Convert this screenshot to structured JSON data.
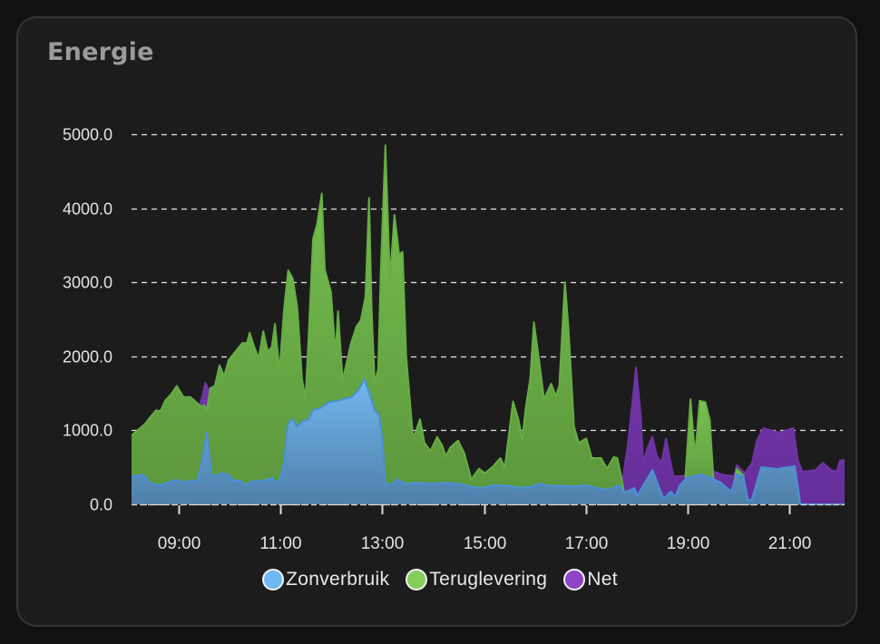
{
  "card": {
    "title": "Energie"
  },
  "colors": {
    "background": "#111111",
    "card": "#1c1c1c",
    "zonverbruik": "#6fb8f5",
    "teruglevering": "#85cd5a",
    "net": "#8e44c7"
  },
  "legend": [
    {
      "label": "Zonverbruik",
      "color": "#6fb8f5"
    },
    {
      "label": "Teruglevering",
      "color": "#85cd5a"
    },
    {
      "label": "Net",
      "color": "#8e44c7"
    }
  ],
  "chart_data": {
    "type": "area",
    "stacked": true,
    "title": "Energie",
    "xlabel": "",
    "ylabel": "",
    "ylim": [
      0,
      5000
    ],
    "xlim_hours": [
      8.07,
      22.09
    ],
    "y_ticks": [
      "0.0",
      "1000.0",
      "2000.0",
      "3000.0",
      "4000.0",
      "5000.0"
    ],
    "x_ticks": [
      "09:00",
      "11:00",
      "13:00",
      "15:00",
      "17:00",
      "19:00",
      "21:00"
    ],
    "grid": true,
    "legend_position": "bottom",
    "series": [
      {
        "name": "Net",
        "color": "#8e44c7",
        "note": "stack_top = cumulative top of Zonverbruik+Teruglevering+Net",
        "segments": [
          [
            [
              8.3,
              1000
            ],
            [
              8.4,
              1150
            ],
            [
              8.5,
              1230
            ],
            [
              8.6,
              1200
            ]
          ],
          [
            [
              9.4,
              1330
            ],
            [
              9.46,
              1450
            ],
            [
              9.52,
              1640
            ],
            [
              9.58,
              1560
            ],
            [
              9.66,
              1450
            ]
          ],
          [
            [
              17.72,
              300
            ],
            [
              17.83,
              810
            ],
            [
              17.99,
              1850
            ],
            [
              18.08,
              1210
            ],
            [
              18.13,
              560
            ],
            [
              18.22,
              770
            ],
            [
              18.31,
              910
            ],
            [
              18.4,
              650
            ],
            [
              18.49,
              560
            ],
            [
              18.58,
              890
            ],
            [
              18.67,
              560
            ],
            [
              18.72,
              380
            ],
            [
              18.9,
              380
            ],
            [
              18.98,
              400
            ],
            [
              19.5,
              400
            ],
            [
              19.53,
              440
            ],
            [
              19.69,
              400
            ],
            [
              19.92,
              380
            ],
            [
              19.97,
              530
            ],
            [
              20.13,
              420
            ],
            [
              20.27,
              560
            ],
            [
              20.36,
              850
            ],
            [
              20.49,
              1030
            ],
            [
              20.69,
              990
            ],
            [
              20.81,
              970
            ],
            [
              21.08,
              1030
            ],
            [
              21.17,
              600
            ],
            [
              21.26,
              440
            ],
            [
              21.52,
              465
            ],
            [
              21.66,
              560
            ],
            [
              21.82,
              465
            ],
            [
              21.93,
              440
            ],
            [
              22.0,
              590
            ],
            [
              22.09,
              600
            ]
          ]
        ]
      },
      {
        "name": "Teruglevering",
        "color": "#85cd5a",
        "note": "stack_top = cumulative top of Zonverbruik+Teruglevering",
        "segments": [
          [
            [
              8.07,
              930
            ],
            [
              8.34,
              1090
            ],
            [
              8.55,
              1270
            ],
            [
              8.64,
              1260
            ],
            [
              8.73,
              1400
            ],
            [
              8.84,
              1480
            ],
            [
              8.96,
              1600
            ],
            [
              9.09,
              1450
            ],
            [
              9.23,
              1450
            ],
            [
              9.37,
              1360
            ],
            [
              9.44,
              1320
            ],
            [
              9.5,
              1340
            ],
            [
              9.55,
              1270
            ],
            [
              9.62,
              1570
            ],
            [
              9.71,
              1600
            ],
            [
              9.8,
              1880
            ],
            [
              9.89,
              1730
            ],
            [
              9.98,
              1950
            ],
            [
              10.12,
              2070
            ],
            [
              10.25,
              2180
            ],
            [
              10.34,
              2180
            ],
            [
              10.39,
              2320
            ],
            [
              10.48,
              2130
            ],
            [
              10.57,
              1970
            ],
            [
              10.66,
              2340
            ],
            [
              10.75,
              2060
            ],
            [
              10.83,
              2130
            ],
            [
              10.89,
              2440
            ],
            [
              10.98,
              1790
            ],
            [
              11.07,
              2650
            ],
            [
              11.15,
              3160
            ],
            [
              11.24,
              3050
            ],
            [
              11.33,
              2650
            ],
            [
              11.42,
              1700
            ],
            [
              11.49,
              1420
            ],
            [
              11.55,
              2240
            ],
            [
              11.64,
              3590
            ],
            [
              11.72,
              3790
            ],
            [
              11.81,
              4200
            ],
            [
              11.87,
              3170
            ],
            [
              11.99,
              2870
            ],
            [
              12.08,
              2030
            ],
            [
              12.13,
              2610
            ],
            [
              12.22,
              1670
            ],
            [
              12.38,
              2160
            ],
            [
              12.49,
              2400
            ],
            [
              12.58,
              2490
            ],
            [
              12.67,
              2810
            ],
            [
              12.74,
              4140
            ],
            [
              12.79,
              2650
            ],
            [
              12.85,
              1630
            ],
            [
              12.92,
              1830
            ],
            [
              12.97,
              3140
            ],
            [
              13.06,
              4850
            ],
            [
              13.15,
              3050
            ],
            [
              13.24,
              3910
            ],
            [
              13.33,
              3380
            ],
            [
              13.4,
              3410
            ],
            [
              13.47,
              2000
            ],
            [
              13.6,
              930
            ],
            [
              13.65,
              960
            ],
            [
              13.74,
              1150
            ],
            [
              13.83,
              830
            ],
            [
              13.95,
              720
            ],
            [
              14.08,
              910
            ],
            [
              14.18,
              790
            ],
            [
              14.25,
              650
            ],
            [
              14.34,
              770
            ],
            [
              14.49,
              860
            ],
            [
              14.61,
              690
            ],
            [
              14.75,
              340
            ],
            [
              14.9,
              480
            ],
            [
              15.02,
              420
            ],
            [
              15.16,
              500
            ],
            [
              15.32,
              625
            ],
            [
              15.41,
              500
            ],
            [
              15.57,
              1390
            ],
            [
              15.68,
              1140
            ],
            [
              15.75,
              870
            ],
            [
              15.82,
              1300
            ],
            [
              15.91,
              1700
            ],
            [
              15.98,
              2460
            ],
            [
              16.09,
              1910
            ],
            [
              16.18,
              1420
            ],
            [
              16.32,
              1630
            ],
            [
              16.41,
              1460
            ],
            [
              16.48,
              1600
            ],
            [
              16.59,
              3000
            ],
            [
              16.66,
              2380
            ],
            [
              16.77,
              1050
            ],
            [
              16.86,
              830
            ],
            [
              17.01,
              890
            ],
            [
              17.12,
              625
            ],
            [
              17.3,
              625
            ],
            [
              17.42,
              480
            ],
            [
              17.55,
              640
            ],
            [
              17.62,
              625
            ],
            [
              17.69,
              400
            ],
            [
              17.75,
              180
            ]
          ],
          [
            [
              18.96,
              355
            ],
            [
              19.06,
              1420
            ],
            [
              19.15,
              650
            ],
            [
              19.24,
              1400
            ],
            [
              19.35,
              1380
            ],
            [
              19.44,
              1140
            ],
            [
              19.51,
              343
            ]
          ],
          [
            [
              19.92,
              300
            ],
            [
              19.97,
              480
            ],
            [
              20.06,
              420
            ],
            [
              20.12,
              380
            ]
          ]
        ]
      },
      {
        "name": "Zonverbruik",
        "color": "#6fb8f5",
        "note": "stack_top = Zonverbruik value",
        "segments": [
          [
            [
              8.07,
              380
            ],
            [
              8.3,
              400
            ],
            [
              8.45,
              280
            ],
            [
              8.64,
              260
            ],
            [
              8.93,
              330
            ],
            [
              9.1,
              300
            ],
            [
              9.37,
              330
            ],
            [
              9.46,
              600
            ],
            [
              9.55,
              970
            ],
            [
              9.64,
              400
            ],
            [
              9.73,
              380
            ],
            [
              9.82,
              420
            ],
            [
              9.98,
              400
            ],
            [
              10.07,
              320
            ],
            [
              10.21,
              320
            ],
            [
              10.3,
              260
            ],
            [
              10.43,
              310
            ],
            [
              10.75,
              330
            ],
            [
              10.84,
              360
            ],
            [
              10.89,
              290
            ],
            [
              10.98,
              320
            ],
            [
              11.07,
              560
            ],
            [
              11.14,
              1090
            ],
            [
              11.23,
              1150
            ],
            [
              11.32,
              1050
            ],
            [
              11.41,
              1110
            ],
            [
              11.55,
              1150
            ],
            [
              11.64,
              1270
            ],
            [
              11.78,
              1300
            ],
            [
              11.96,
              1380
            ],
            [
              12.13,
              1400
            ],
            [
              12.4,
              1450
            ],
            [
              12.53,
              1540
            ],
            [
              12.65,
              1690
            ],
            [
              12.74,
              1510
            ],
            [
              12.85,
              1270
            ],
            [
              12.94,
              1200
            ],
            [
              13.01,
              810
            ],
            [
              13.06,
              260
            ],
            [
              13.2,
              280
            ],
            [
              13.29,
              340
            ],
            [
              13.45,
              280
            ],
            [
              13.68,
              290
            ],
            [
              13.91,
              280
            ],
            [
              14.22,
              290
            ],
            [
              14.5,
              280
            ],
            [
              14.8,
              230
            ],
            [
              15.0,
              220
            ],
            [
              15.2,
              260
            ],
            [
              15.5,
              250
            ],
            [
              15.7,
              220
            ],
            [
              15.9,
              230
            ],
            [
              16.1,
              280
            ],
            [
              16.3,
              250
            ],
            [
              16.5,
              250
            ],
            [
              16.8,
              240
            ],
            [
              17.0,
              260
            ],
            [
              17.2,
              220
            ],
            [
              17.42,
              196
            ],
            [
              17.66,
              257
            ],
            [
              17.75,
              159
            ],
            [
              17.96,
              220
            ],
            [
              18.01,
              110
            ],
            [
              18.31,
              466
            ],
            [
              18.53,
              74
            ],
            [
              18.67,
              172
            ],
            [
              18.76,
              98
            ],
            [
              18.85,
              257
            ],
            [
              18.99,
              355
            ],
            [
              19.26,
              404
            ],
            [
              19.51,
              343
            ],
            [
              19.65,
              294
            ],
            [
              19.86,
              172
            ],
            [
              19.97,
              404
            ],
            [
              20.1,
              380
            ],
            [
              20.19,
              49
            ],
            [
              20.27,
              74
            ],
            [
              20.45,
              502
            ],
            [
              20.75,
              478
            ],
            [
              21.11,
              515
            ],
            [
              21.22,
              0
            ],
            [
              22.09,
              0
            ]
          ]
        ]
      }
    ]
  }
}
